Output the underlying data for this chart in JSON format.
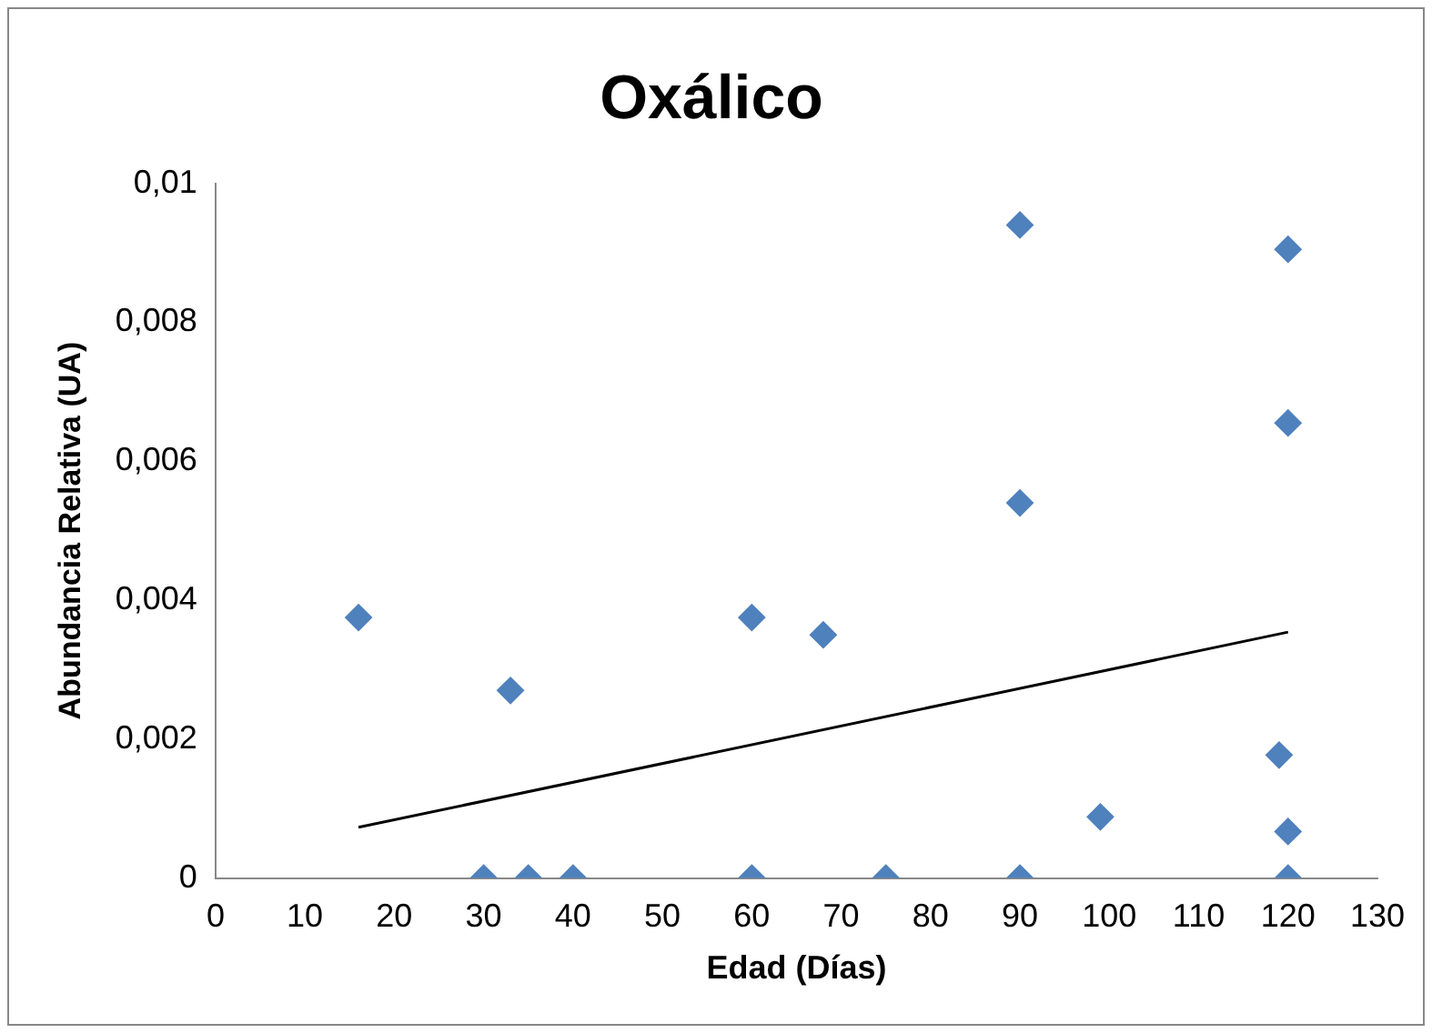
{
  "chart_data": {
    "type": "scatter",
    "title": "Oxálico",
    "xlabel": "Edad (Días)",
    "ylabel": "Abundancia Relativa (UA)",
    "xlim": [
      0,
      130
    ],
    "xticks": [
      0,
      10,
      20,
      30,
      40,
      50,
      60,
      70,
      80,
      90,
      100,
      110,
      120,
      130
    ],
    "ylim": [
      0,
      0.01
    ],
    "yticks": [
      0,
      {
        "value": 0.002,
        "label": "0,002"
      },
      {
        "value": 0.004,
        "label": "0,004"
      },
      {
        "value": 0.006,
        "label": "0,006"
      },
      {
        "value": 0.008,
        "label": "0,008"
      },
      {
        "value": 0.01,
        "label": "0,01"
      }
    ],
    "grid": false,
    "legend": false,
    "series": [
      {
        "marker": "diamond",
        "color": "#4f81bd",
        "x": [
          16,
          33,
          30,
          35,
          40,
          60,
          60,
          68,
          75,
          90,
          90,
          90,
          99,
          120,
          120,
          119,
          120,
          120
        ],
        "values": [
          0.00375,
          0.0027,
          0,
          0,
          0,
          0.00375,
          0,
          0.0035,
          0,
          0.0094,
          0.0054,
          0,
          0.00088,
          0.00905,
          0.00655,
          0.00177,
          0.00067,
          0
        ]
      },
      {
        "type": "line",
        "marker": "none",
        "color": "#000000",
        "x": [
          16,
          120
        ],
        "values": [
          0.00073,
          0.00354
        ]
      }
    ]
  }
}
